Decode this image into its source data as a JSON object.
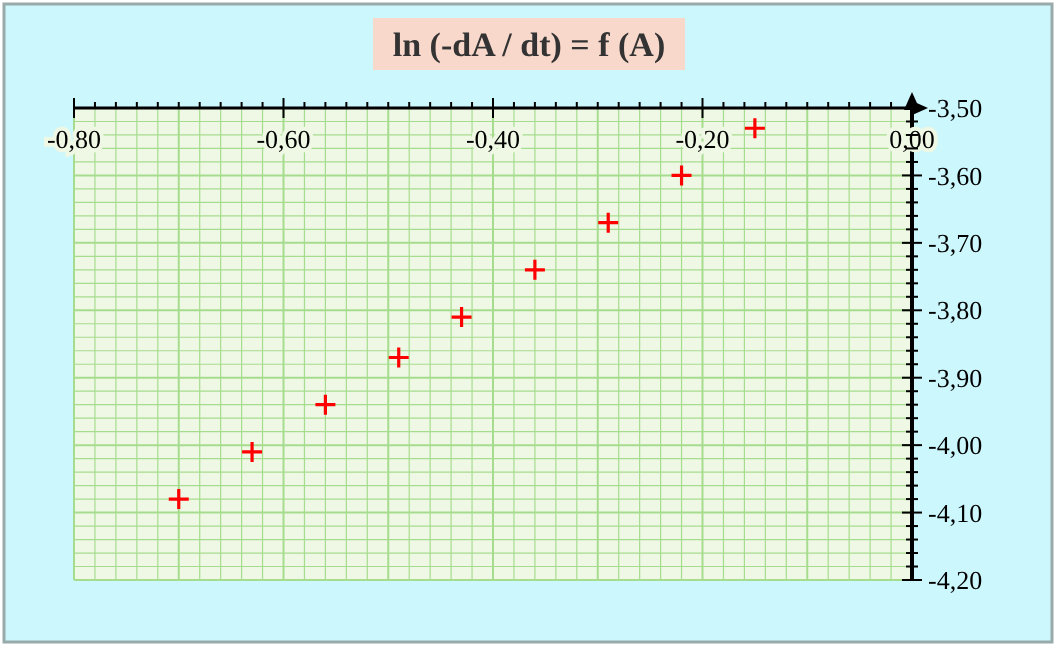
{
  "chart_data": {
    "type": "scatter",
    "title": "ln (-dA / dt) = f (A)",
    "x": [
      -0.7,
      -0.63,
      -0.56,
      -0.49,
      -0.43,
      -0.36,
      -0.29,
      -0.22,
      -0.15
    ],
    "series": [
      {
        "color": "#ff0000",
        "values": [
          -4.08,
          -4.01,
          -3.94,
          -3.87,
          -3.81,
          -3.74,
          -3.67,
          -3.6,
          -3.53
        ]
      }
    ],
    "marker": "cross",
    "grid": true,
    "xlim": [
      -0.8,
      0.0
    ],
    "ylim": [
      -4.2,
      -3.5
    ],
    "xticks": [
      {
        "value": -0.8,
        "label": "-0,80"
      },
      {
        "value": -0.78,
        "label": null
      },
      {
        "value": -0.76,
        "label": null
      },
      {
        "value": -0.74,
        "label": null
      },
      {
        "value": -0.72,
        "label": null
      },
      {
        "value": -0.7,
        "label": null
      },
      {
        "value": -0.68,
        "label": null
      },
      {
        "value": -0.66,
        "label": null
      },
      {
        "value": -0.64,
        "label": null
      },
      {
        "value": -0.62,
        "label": null
      },
      {
        "value": -0.6,
        "label": "-0,60"
      },
      {
        "value": -0.58,
        "label": null
      },
      {
        "value": -0.56,
        "label": null
      },
      {
        "value": -0.54,
        "label": null
      },
      {
        "value": -0.52,
        "label": null
      },
      {
        "value": -0.5,
        "label": null
      },
      {
        "value": -0.48,
        "label": null
      },
      {
        "value": -0.46,
        "label": null
      },
      {
        "value": -0.44,
        "label": null
      },
      {
        "value": -0.42,
        "label": null
      },
      {
        "value": -0.4,
        "label": "-0,40"
      },
      {
        "value": -0.38,
        "label": null
      },
      {
        "value": -0.36,
        "label": null
      },
      {
        "value": -0.34,
        "label": null
      },
      {
        "value": -0.32,
        "label": null
      },
      {
        "value": -0.3,
        "label": null
      },
      {
        "value": -0.28,
        "label": null
      },
      {
        "value": -0.26,
        "label": null
      },
      {
        "value": -0.24,
        "label": null
      },
      {
        "value": -0.22,
        "label": null
      },
      {
        "value": -0.2,
        "label": "-0,20"
      },
      {
        "value": -0.18,
        "label": null
      },
      {
        "value": -0.16,
        "label": null
      },
      {
        "value": -0.14,
        "label": null
      },
      {
        "value": -0.12,
        "label": null
      },
      {
        "value": -0.1,
        "label": null
      },
      {
        "value": -0.08,
        "label": null
      },
      {
        "value": -0.06,
        "label": null
      },
      {
        "value": -0.04,
        "label": null
      },
      {
        "value": -0.02,
        "label": null
      },
      {
        "value": 0.0,
        "label": "0,00"
      }
    ],
    "yticks": [
      {
        "value": -3.5,
        "label": "-3,50"
      },
      {
        "value": -3.52,
        "label": null
      },
      {
        "value": -3.54,
        "label": null
      },
      {
        "value": -3.56,
        "label": null
      },
      {
        "value": -3.58,
        "label": null
      },
      {
        "value": -3.6,
        "label": "-3,60"
      },
      {
        "value": -3.62,
        "label": null
      },
      {
        "value": -3.64,
        "label": null
      },
      {
        "value": -3.66,
        "label": null
      },
      {
        "value": -3.68,
        "label": null
      },
      {
        "value": -3.7,
        "label": "-3,70"
      },
      {
        "value": -3.72,
        "label": null
      },
      {
        "value": -3.74,
        "label": null
      },
      {
        "value": -3.76,
        "label": null
      },
      {
        "value": -3.78,
        "label": null
      },
      {
        "value": -3.8,
        "label": "-3,80"
      },
      {
        "value": -3.82,
        "label": null
      },
      {
        "value": -3.84,
        "label": null
      },
      {
        "value": -3.86,
        "label": null
      },
      {
        "value": -3.88,
        "label": null
      },
      {
        "value": -3.9,
        "label": "-3,90"
      },
      {
        "value": -3.92,
        "label": null
      },
      {
        "value": -3.94,
        "label": null
      },
      {
        "value": -3.96,
        "label": null
      },
      {
        "value": -3.98,
        "label": null
      },
      {
        "value": -4.0,
        "label": "-4,00"
      },
      {
        "value": -4.02,
        "label": null
      },
      {
        "value": -4.04,
        "label": null
      },
      {
        "value": -4.06,
        "label": null
      },
      {
        "value": -4.08,
        "label": null
      },
      {
        "value": -4.1,
        "label": "-4,10"
      },
      {
        "value": -4.12,
        "label": null
      },
      {
        "value": -4.14,
        "label": null
      },
      {
        "value": -4.16,
        "label": null
      },
      {
        "value": -4.18,
        "label": null
      },
      {
        "value": -4.2,
        "label": "-4,20"
      }
    ]
  }
}
